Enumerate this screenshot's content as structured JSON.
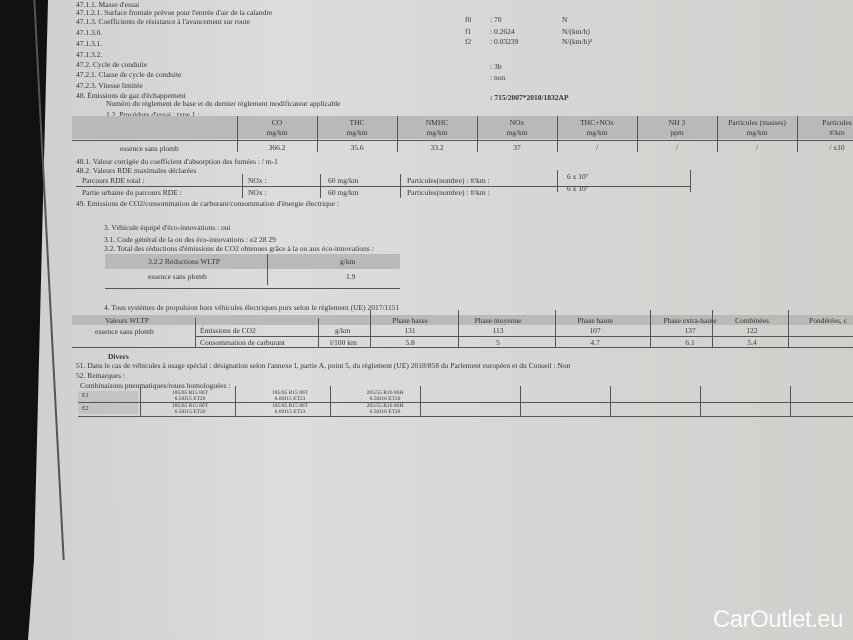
{
  "lines": [
    "47.1.1.  Masse d'essai",
    "47.1.2.1. Surface frontale prévue pour l'entrée d'air de la calandre",
    "47.1.3.   Coefficients de résistance à l'avancement sur route",
    "47.1.3.0.",
    "47.1.3.1.",
    "47.1.3.2.",
    "47.2.     Cycle de conduite",
    "47.2.1.   Classe de cycle de conduite",
    "47.2.3.   Vitesse limitée",
    "48.       Émissions de gaz d'échappement",
    "Numéro du règlement de base et du dernier règlement modificateur applicable",
    "1.2. Procédure d'essai : type 1 :"
  ],
  "coeffs": [
    {
      "name": "f0",
      "value": ": 70",
      "unit": "N"
    },
    {
      "name": "f1",
      "value": ": 0.2624",
      "unit": "N/(km/h)"
    },
    {
      "name": "f2",
      "value": ": 0.03239",
      "unit": "N/(km/h)²"
    }
  ],
  "cycle_class": ": 3b",
  "speed_limited": ": non",
  "regulation": ": 715/2007*2018/1832AP",
  "type1": {
    "headers": [
      [
        "CO",
        "mg/km"
      ],
      [
        "THC",
        "mg/km"
      ],
      [
        "NMHC",
        "mg/km"
      ],
      [
        "NOx",
        "mg/km"
      ],
      [
        "THC+NOx",
        "mg/km"
      ],
      [
        "NH 3",
        "ppm"
      ],
      [
        "Particules (masses)",
        "mg/km"
      ],
      [
        "Particules",
        "#/km"
      ]
    ],
    "row_label": "essence sans plomb",
    "values": [
      "366.2",
      "35.6",
      "33.2",
      "37",
      "/",
      "/",
      "/",
      "/ x10"
    ]
  },
  "l481": "48.1.     Valeur corrigée du coefficient d'absorption des fumées : / m-1",
  "l482": "48.2.     Valeurs RDE maximales déclarées",
  "rde": [
    {
      "label": "Parcours RDE total :",
      "nox": "NOx :",
      "nox_val": "60 mg/km",
      "pn": "Particules(nombre) : #/km :",
      "pn_val": "6 x 10⁷"
    },
    {
      "label": "Partie urbaine du parcours RDE   :",
      "nox": "NOx :",
      "nox_val": "60 mg/km",
      "pn": "Particules(nombre) : #/km :",
      "pn_val": "6 x 10⁷"
    }
  ],
  "l49": "49.       Emissions de CO2/consommation de carburant/consommation d'énergie électrique :",
  "eco": [
    "3. Véhicule équipé d'éco-innovations : oui",
    "3.1. Code général de la ou des éco-innovations : e2 28 29",
    "3.2. Total des réductions d'émissions de CO2 obtenues grâce à la ou aux éco-innovations :"
  ],
  "wltp_red": {
    "h1": "3.2.2 Réductions WLTP",
    "h2": "g/km",
    "label": "essence sans plomb",
    "value": "1.9"
  },
  "l4": "4. Tous systèmes de propulsion hors véhicules électriques purs selon le règlement (UE) 2017/1151",
  "wltp": {
    "h0": "Valeurs WLTP",
    "fuel": "essence sans plomb",
    "phases": [
      "Phase basse",
      "Phase moyenne",
      "Phase haute",
      "Phase extra-haute",
      "Combinées",
      "Pondérées, c"
    ],
    "rows": [
      {
        "label": "Émissions de CO2",
        "unit": "g/km",
        "values": [
          "131",
          "113",
          "107",
          "137",
          "122",
          ""
        ]
      },
      {
        "label": "Consommation de carburant",
        "unit": "l/100 km",
        "values": [
          "5.8",
          "5",
          "4.7",
          "6.1",
          "5.4",
          ""
        ]
      }
    ]
  },
  "divers": "Divers",
  "l51": "51.       Dans le cas de véhicules à usage spécial : désignation selon l'annexe I, partie A, point 5, du règlement (UE) 2018/858 du Parlement européen et du Conseil : Non",
  "l52": "52.       Remarques :",
  "tyres_title": "Combinaisons pneumatiques/roues homologuées :",
  "tyres": [
    {
      "axle": "E1",
      "cols": [
        "185/65 R15 86T",
        "6.50J15 ET20",
        "185/65 R15 86T",
        "6.00J15 ET23",
        "205/55 R16 86H",
        "6.50J16 ET20"
      ]
    },
    {
      "axle": "E2",
      "cols": [
        "185/65 R15 86T",
        "6.50J15 ET20",
        "185/65 R15 86T",
        "6.00J15 ET23",
        "205/55 R16 86H",
        "6.50J16 ET20"
      ]
    }
  ],
  "watermark": "CarOutlet.eu"
}
